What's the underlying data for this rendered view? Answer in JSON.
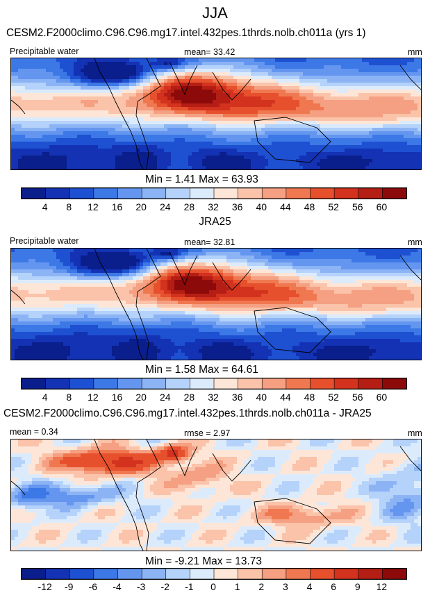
{
  "main_title": "JJA",
  "chart_data": [
    {
      "type": "heatmap",
      "title": "CESM2.F2000climo.C96.C96.mg17.intel.432pes.1thrds.nolb.ch011a (yrs 1)",
      "left_label": "Precipitable water",
      "center_label": "mean=  33.42",
      "right_label": "mm",
      "min_max": "Min =   1.41 Max =  63.93",
      "colorbar_levels": [
        "4",
        "8",
        "12",
        "16",
        "20",
        "24",
        "28",
        "32",
        "36",
        "40",
        "44",
        "48",
        "52",
        "56",
        "60"
      ],
      "variant": "model"
    },
    {
      "type": "heatmap",
      "title": "JRA25",
      "left_label": "Precipitable water",
      "center_label": "mean=  32.81",
      "right_label": "mm",
      "min_max": "Min =   1.58 Max =  64.61",
      "colorbar_levels": [
        "4",
        "8",
        "12",
        "16",
        "20",
        "24",
        "28",
        "32",
        "36",
        "40",
        "44",
        "48",
        "52",
        "56",
        "60"
      ],
      "variant": "obs"
    },
    {
      "type": "heatmap",
      "title": "CESM2.F2000climo.C96.C96.mg17.intel.432pes.1thrds.nolb.ch011a - JRA25",
      "left_label": "mean =  0.34",
      "center_label": "rmse =  2.97",
      "right_label": "mm",
      "min_max": "Min =  -9.21 Max =  13.73",
      "colorbar_levels": [
        "-12",
        "-9",
        "-6",
        "-4",
        "-3",
        "-2",
        "-1",
        "0",
        "1",
        "2",
        "3",
        "4",
        "6",
        "9",
        "12"
      ],
      "variant": "diff"
    }
  ],
  "colors": [
    "#0a1e8c",
    "#1432b4",
    "#1e50d2",
    "#3c78e6",
    "#6496f0",
    "#8cb4f5",
    "#b4d2fa",
    "#dcebfc",
    "#fde6d7",
    "#fac3aa",
    "#f5a082",
    "#f07850",
    "#e6502d",
    "#d2321e",
    "#b41e14",
    "#8c0a0a"
  ]
}
